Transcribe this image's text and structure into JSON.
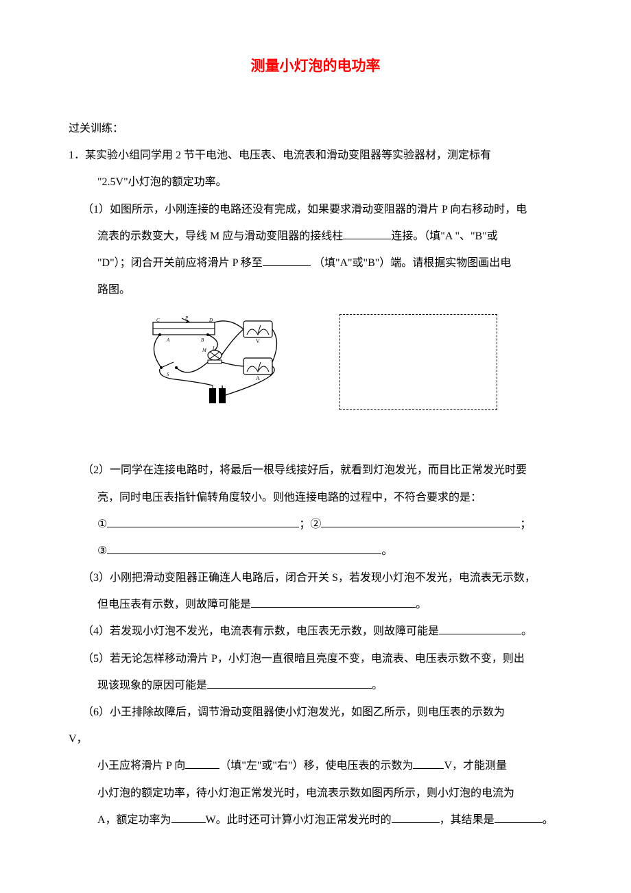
{
  "title": {
    "text": "测量小灯泡的电功率",
    "color": "#ff0000",
    "fontsize": 21
  },
  "section_label": "过关训练：",
  "body": {
    "fontsize": 16,
    "line_height": 2.2,
    "color": "#000000"
  },
  "q1": {
    "stem_l1": "1．某实验小组同学用 2 节干电池、电压表、电流表和滑动变阻器等实验器材，测定标有",
    "stem_l2": "\"2.5V\"小灯泡的额定功率。",
    "p1_l1": "（1）如图所示，小刚连接的电路还没有完成，如果要求滑动变阻器的滑片 P 向右移动时，电",
    "p1_l2_a": "流表的示数变大，导线 M 应与滑动变阻器的接线柱",
    "p1_l2_b": "连接。（填\"A \"、\"B\"或",
    "p1_l3_a": "\"D\"）；闭合开关前应将滑片 P 移至",
    "p1_l3_b": "（填\"A\"或\"B\"）端。请根据实物图画出电",
    "p1_l4": "路图。",
    "p2_l1": "（2）一同学在连接电路时，将最后一根导线接好后，就看到灯泡发光，而目比正常发光时要",
    "p2_l2": "亮，同时电压表指针偏转角度较小。则他连接电路的过程中，不符合要求的是：",
    "p2_l3_a": "①",
    "p2_l3_b": "；②",
    "p2_l3_c": "；",
    "p2_l4_a": "③",
    "p2_l4_b": "。",
    "p3_l1": "（3）小刚把滑动变阻器正确连人电路后，闭合开关 S，若发现小灯泡不发光，电流表无示数，",
    "p3_l2_a": "但电压表有示数，则故障可能是",
    "p3_l2_b": "。",
    "p4_a": "（4）若发现小灯泡不发光，电流表有示数，电压表无示数，则故障可能是",
    "p4_b": "。",
    "p5_l1": "（5）若无论怎样移动滑片 P，小灯泡一直很暗且亮度不变，电流表、电压表示数不变，则出",
    "p5_l2_a": "现该现象的原因可能是",
    "p5_l2_b": "。",
    "p6_l1": "（6）小王排除故障后，调节滑动变阻器使小灯泡发光，如图乙所示，则电压表的示数为",
    "p6_l2": "V，",
    "p6_l3_a": "小王应将滑片 P 向",
    "p6_l3_b": "（填\"左\"或\"右\"）移，使电压表的示数为",
    "p6_l3_c": "V，才能测量",
    "p6_l4": "小灯泡的额定功率，待小灯泡正常发光时，电流表示数如图丙所示，则小灯泡的电流为",
    "p6_l5_a": "A，额定功率为",
    "p6_l5_b": "W。此时还可计算小灯泡正常发光时的",
    "p6_l5_c": "，其结果是",
    "p6_l5_d": "。"
  },
  "blanks": {
    "w_short": "50px",
    "w_med": "70px",
    "w_long": "120px",
    "w_xl": "240px",
    "w_xxl": "280px",
    "w_xxxl": "360px"
  },
  "figure": {
    "circuit_width": 240,
    "circuit_height": 140,
    "dashed_width": 230,
    "dashed_height": 140,
    "dashed_border_color": "#000000"
  }
}
